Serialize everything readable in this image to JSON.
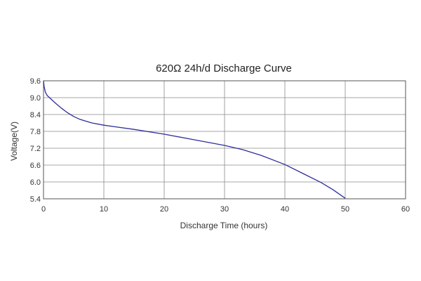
{
  "chart_data": {
    "type": "line",
    "title": "620Ω 24h/d Discharge Curve",
    "xlabel": "Discharge Time (hours)",
    "ylabel": "Voltage(V)",
    "xlim": [
      0,
      60
    ],
    "ylim": [
      5.4,
      9.6
    ],
    "xticks": [
      0,
      10,
      20,
      30,
      40,
      50,
      60
    ],
    "yticks": [
      5.4,
      6.0,
      6.6,
      7.2,
      7.8,
      8.4,
      9.0,
      9.6
    ],
    "ytick_labels": [
      "5.4",
      "6.0",
      "6.6",
      "7.2",
      "7.8",
      "8.4",
      "9.0",
      "9.6"
    ],
    "grid": true,
    "legend": "none",
    "line_color": "#2e2e9a",
    "series": [
      {
        "x": [
          0,
          0.1,
          0.3,
          0.6,
          1,
          1.5,
          2,
          3,
          4,
          5,
          6,
          8,
          10,
          12,
          15,
          20,
          25,
          30,
          33,
          36,
          40,
          43,
          46,
          48,
          50
        ],
        "y": [
          9.6,
          9.4,
          9.2,
          9.08,
          9.0,
          8.9,
          8.8,
          8.62,
          8.46,
          8.33,
          8.23,
          8.1,
          8.02,
          7.96,
          7.87,
          7.7,
          7.5,
          7.3,
          7.15,
          6.95,
          6.62,
          6.3,
          5.98,
          5.72,
          5.42
        ]
      }
    ]
  }
}
